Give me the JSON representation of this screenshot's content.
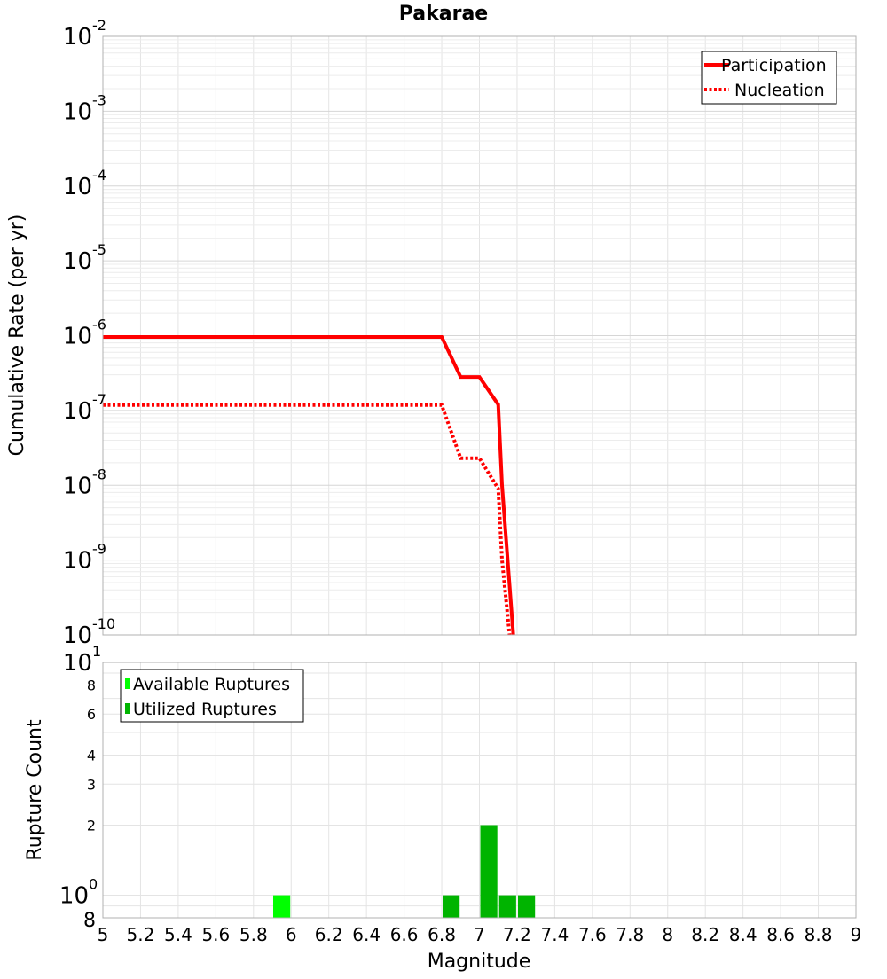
{
  "chart_data": [
    {
      "type": "line",
      "title": "Pakarae",
      "xlabel": "",
      "ylabel": "Cumulative Rate (per yr)",
      "xlim": [
        5,
        9
      ],
      "ylim": [
        1e-10,
        0.01
      ],
      "yscale": "log",
      "grid": true,
      "legend_position": "top-right",
      "ytick_labels": [
        {
          "mantissa": "10",
          "exp": "-2"
        },
        {
          "mantissa": "10",
          "exp": "-3"
        },
        {
          "mantissa": "10",
          "exp": "-4"
        },
        {
          "mantissa": "10",
          "exp": "-5"
        },
        {
          "mantissa": "10",
          "exp": "-6"
        },
        {
          "mantissa": "10",
          "exp": "-7"
        },
        {
          "mantissa": "10",
          "exp": "-8"
        },
        {
          "mantissa": "10",
          "exp": "-9"
        },
        {
          "mantissa": "10",
          "exp": "-10"
        }
      ],
      "series": [
        {
          "name": "Participation",
          "color": "#ff0000",
          "style": "solid",
          "x": [
            5.0,
            6.8,
            6.9,
            7.0,
            7.1,
            7.12,
            7.18
          ],
          "y": [
            9.6e-07,
            9.6e-07,
            2.8e-07,
            2.8e-07,
            1.2e-07,
            1e-08,
            1e-10
          ]
        },
        {
          "name": "Nucleation",
          "color": "#ff0000",
          "style": "dotted",
          "x": [
            5.0,
            6.8,
            6.9,
            7.0,
            7.1,
            7.12,
            7.16
          ],
          "y": [
            1.18e-07,
            1.18e-07,
            2.3e-08,
            2.3e-08,
            9e-09,
            1e-09,
            1e-10
          ]
        }
      ]
    },
    {
      "type": "bar",
      "title": "",
      "xlabel": "Magnitude",
      "ylabel": "Rupture Count",
      "xlim": [
        5,
        9
      ],
      "ylim": [
        0.8,
        10
      ],
      "yscale": "log",
      "grid": true,
      "legend_position": "top-left",
      "bin_width": 0.1,
      "xticks": [
        "5",
        "5.2",
        "5.4",
        "5.6",
        "5.8",
        "6",
        "6.2",
        "6.4",
        "6.6",
        "6.8",
        "7",
        "7.2",
        "7.4",
        "7.6",
        "7.8",
        "8",
        "8.2",
        "8.4",
        "8.6",
        "8.8",
        "9"
      ],
      "ytick_labels": {
        "top": {
          "mantissa": "10",
          "exp": "1"
        },
        "bottom": {
          "mantissa": "10",
          "exp": "0"
        },
        "minor": [
          {
            "value": 8,
            "label": "8"
          },
          {
            "value": 6,
            "label": "6"
          },
          {
            "value": 4,
            "label": "4"
          },
          {
            "value": 3,
            "label": "3"
          },
          {
            "value": 2,
            "label": "2"
          },
          {
            "value": 0.8,
            "label": "8"
          }
        ]
      },
      "series": [
        {
          "name": "Available Ruptures",
          "color": "#00ff00",
          "x": [
            5.95
          ],
          "values": [
            1
          ]
        },
        {
          "name": "Utilized Ruptures",
          "color": "#00b400",
          "x": [
            6.85,
            7.05,
            7.15,
            7.25
          ],
          "values": [
            1,
            2,
            1,
            1
          ]
        }
      ]
    }
  ]
}
